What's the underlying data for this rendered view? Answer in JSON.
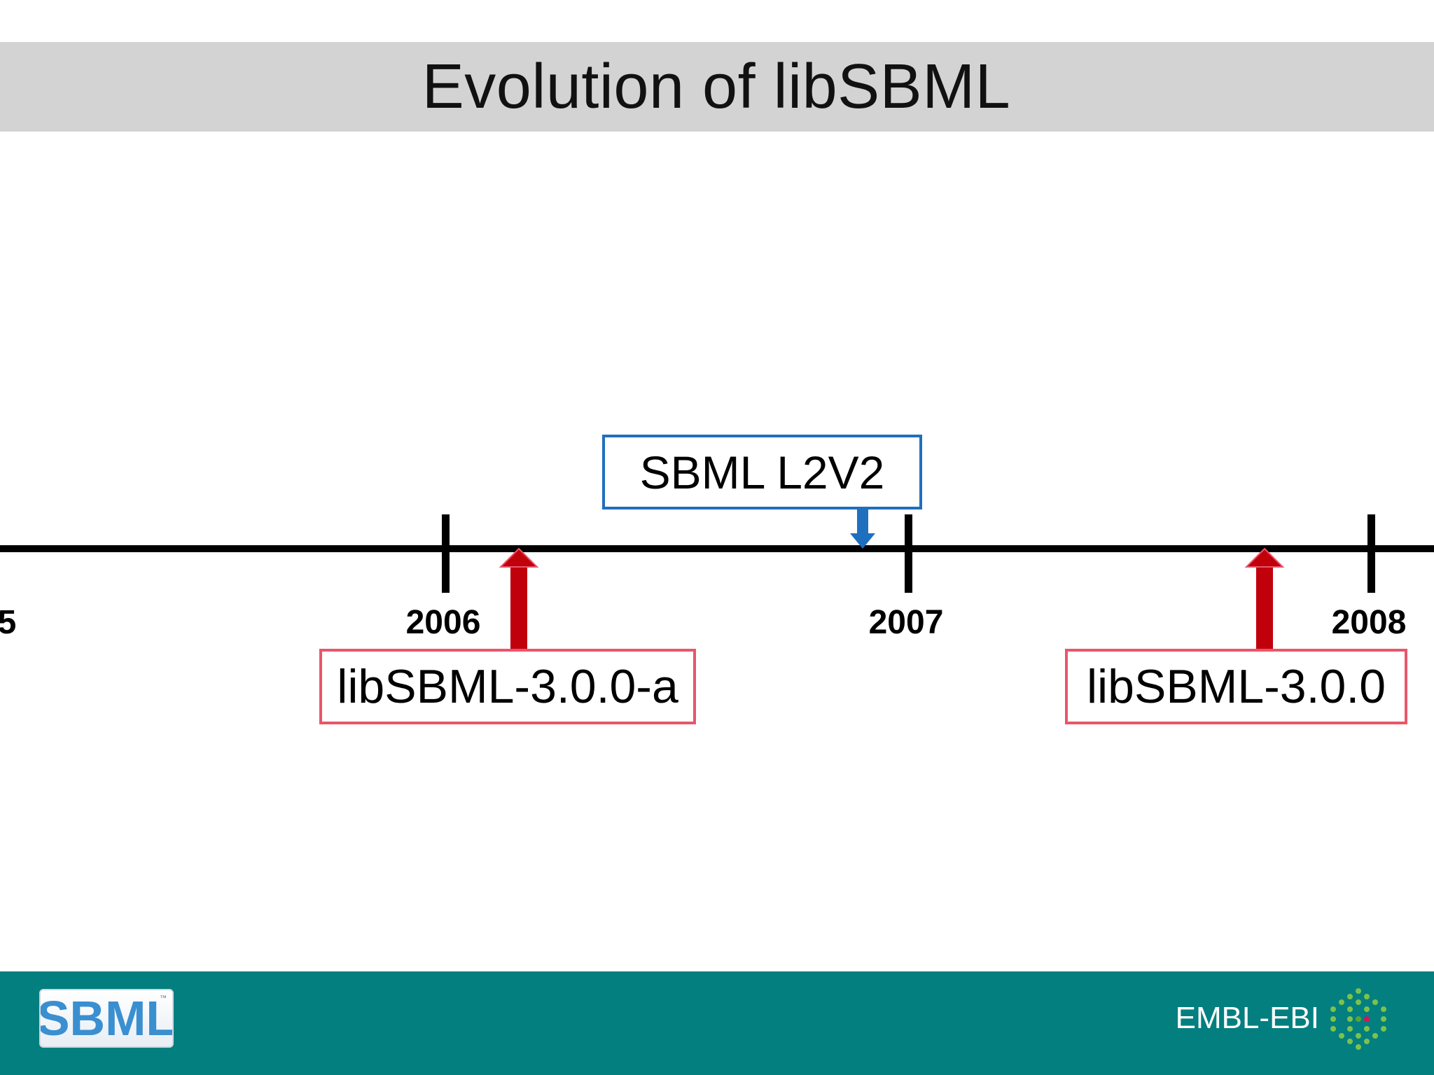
{
  "slide": {
    "title": "Evolution of libSBML"
  },
  "timeline": {
    "years": [
      {
        "label": "5"
      },
      {
        "label": "2006"
      },
      {
        "label": "2007"
      },
      {
        "label": "2008"
      }
    ],
    "events": [
      {
        "label": "SBML L2V2",
        "type": "specification",
        "color": "#1f6fbf"
      },
      {
        "label": "libSBML-3.0.0-a",
        "type": "release",
        "color": "#c0000b"
      },
      {
        "label": "libSBML-3.0.0",
        "type": "release",
        "color": "#c0000b"
      }
    ]
  },
  "footer": {
    "logo_left": "SBML",
    "logo_left_trademark": "™",
    "logo_right": "EMBL-EBI",
    "background_color": "#037f80"
  }
}
